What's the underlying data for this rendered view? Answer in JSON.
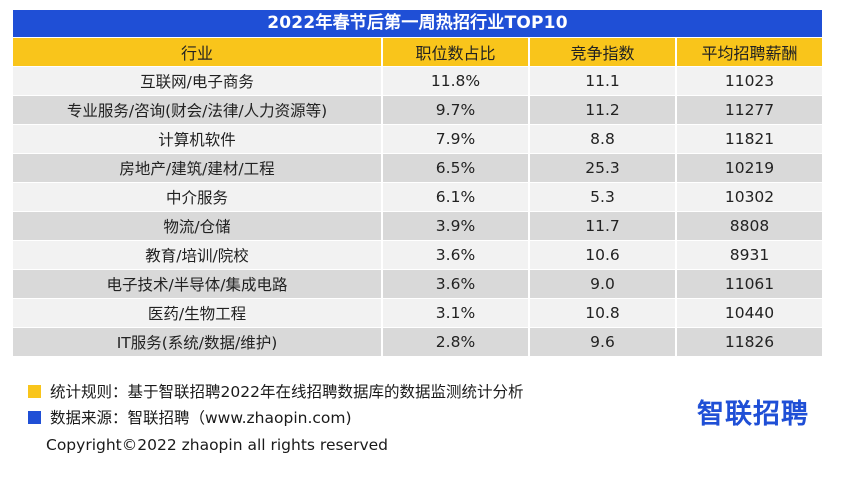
{
  "title": "2022年春节后第一周热招行业TOP10",
  "columns": [
    "行业",
    "职位数占比",
    "竞争指数",
    "平均招聘薪酬"
  ],
  "rows": [
    [
      "互联网/电子商务",
      "11.8%",
      "11.1",
      "11023"
    ],
    [
      "专业服务/咨询(财会/法律/人力资源等)",
      "9.7%",
      "11.2",
      "11277"
    ],
    [
      "计算机软件",
      "7.9%",
      "8.8",
      "11821"
    ],
    [
      "房地产/建筑/建材/工程",
      "6.5%",
      "25.3",
      "10219"
    ],
    [
      "中介服务",
      "6.1%",
      "5.3",
      "10302"
    ],
    [
      "物流/仓储",
      "3.9%",
      "11.7",
      "8808"
    ],
    [
      "教育/培训/院校",
      "3.6%",
      "10.6",
      "8931"
    ],
    [
      "电子技术/半导体/集成电路",
      "3.6%",
      "9.0",
      "11061"
    ],
    [
      "医药/生物工程",
      "3.1%",
      "10.8",
      "10440"
    ],
    [
      "IT服务(系统/数据/维护)",
      "2.8%",
      "9.6",
      "11826"
    ]
  ],
  "legend": {
    "rule": "统计规则：基于智联招聘2022年在线招聘数据库的数据监测统计分析",
    "source": "数据来源：智联招聘（www.zhaopin.com)"
  },
  "logo_text": "智联招聘",
  "copyright": "Copyright©2022 zhaopin all rights reserved",
  "colors": {
    "title_bg": "#1f4fd6",
    "header_bg": "#f9c51b",
    "row_light": "#f2f2f2",
    "row_dark": "#d9d9d9",
    "legend_yellow": "#f9c51b",
    "legend_blue": "#1f4fd6",
    "logo": "#1f4fd6"
  }
}
